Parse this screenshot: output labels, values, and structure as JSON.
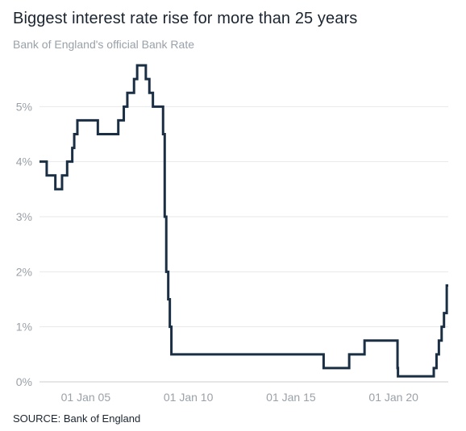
{
  "title": "Biggest interest rate rise for more than 25 years",
  "subtitle": "Bank of England's official Bank Rate",
  "source": "SOURCE: Bank of England",
  "chart_data": {
    "type": "line",
    "step": true,
    "series": [
      {
        "points": [
          [
            "2002-10-01",
            4.0
          ],
          [
            "2003-02-06",
            3.75
          ],
          [
            "2003-07-10",
            3.5
          ],
          [
            "2003-11-06",
            3.75
          ],
          [
            "2004-02-05",
            4.0
          ],
          [
            "2004-05-06",
            4.25
          ],
          [
            "2004-06-10",
            4.5
          ],
          [
            "2004-08-05",
            4.75
          ],
          [
            "2005-08-04",
            4.5
          ],
          [
            "2006-08-03",
            4.75
          ],
          [
            "2006-11-09",
            5.0
          ],
          [
            "2007-01-11",
            5.25
          ],
          [
            "2007-05-10",
            5.5
          ],
          [
            "2007-07-05",
            5.75
          ],
          [
            "2007-12-06",
            5.5
          ],
          [
            "2008-02-07",
            5.25
          ],
          [
            "2008-04-10",
            5.0
          ],
          [
            "2008-10-08",
            4.5
          ],
          [
            "2008-11-06",
            3.0
          ],
          [
            "2008-12-04",
            2.0
          ],
          [
            "2009-01-08",
            1.5
          ],
          [
            "2009-02-05",
            1.0
          ],
          [
            "2009-03-05",
            0.5
          ],
          [
            "2016-08-04",
            0.25
          ],
          [
            "2017-11-02",
            0.5
          ],
          [
            "2018-08-02",
            0.75
          ],
          [
            "2020-03-11",
            0.25
          ],
          [
            "2020-03-19",
            0.1
          ],
          [
            "2021-12-16",
            0.25
          ],
          [
            "2022-02-03",
            0.5
          ],
          [
            "2022-03-17",
            0.75
          ],
          [
            "2022-05-05",
            1.0
          ],
          [
            "2022-06-16",
            1.25
          ],
          [
            "2022-08-04",
            1.75
          ],
          [
            "2022-08-31",
            1.75
          ]
        ]
      }
    ],
    "x_range": [
      "2002-10-01",
      "2022-08-31"
    ],
    "x_ticks": [
      {
        "date": "2005-01-01",
        "label": "01 Jan 05"
      },
      {
        "date": "2010-01-01",
        "label": "01 Jan 10"
      },
      {
        "date": "2015-01-01",
        "label": "01 Jan 15"
      },
      {
        "date": "2020-01-01",
        "label": "01 Jan 20"
      }
    ],
    "y_range": [
      0,
      6
    ],
    "y_ticks": [
      {
        "value": 0,
        "label": "0%"
      },
      {
        "value": 1,
        "label": "1%"
      },
      {
        "value": 2,
        "label": "2%"
      },
      {
        "value": 3,
        "label": "3%"
      },
      {
        "value": 4,
        "label": "4%"
      },
      {
        "value": 5,
        "label": "5%"
      }
    ],
    "grid": "horizontal",
    "line_color": "#1a2e44",
    "grid_color": "#e6e8ea",
    "tick_label_color": "#9aa1a8"
  }
}
